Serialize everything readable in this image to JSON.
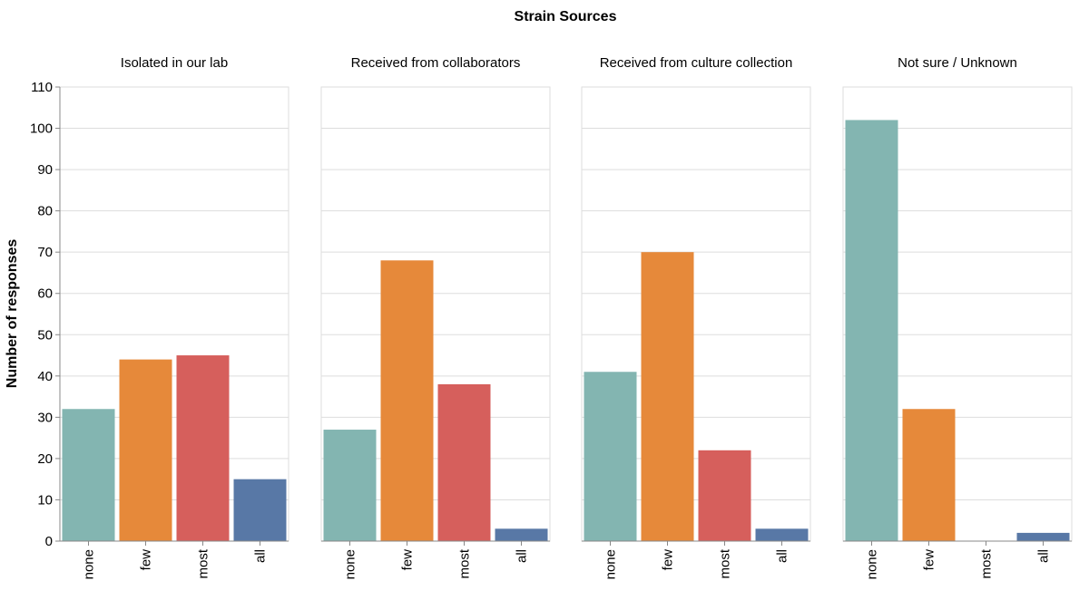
{
  "chart_data": {
    "type": "bar",
    "title": "Strain Sources",
    "ylabel": "Number of responses",
    "xlabel": "",
    "ylim": [
      0,
      110
    ],
    "yticks": [
      0,
      10,
      20,
      30,
      40,
      50,
      60,
      70,
      80,
      90,
      100,
      110
    ],
    "grid": true,
    "categories": [
      "none",
      "few",
      "most",
      "all"
    ],
    "colors": {
      "none": "#83b5b1",
      "few": "#e6893a",
      "most": "#d65f5c",
      "all": "#5878a6"
    },
    "panels": [
      {
        "name": "Isolated in our lab",
        "values": [
          32,
          44,
          45,
          15
        ]
      },
      {
        "name": "Received from collaborators",
        "values": [
          27,
          68,
          38,
          3
        ]
      },
      {
        "name": "Received from culture collection",
        "values": [
          41,
          70,
          22,
          3
        ]
      },
      {
        "name": "Not sure / Unknown",
        "values": [
          102,
          32,
          0,
          2
        ]
      }
    ]
  }
}
